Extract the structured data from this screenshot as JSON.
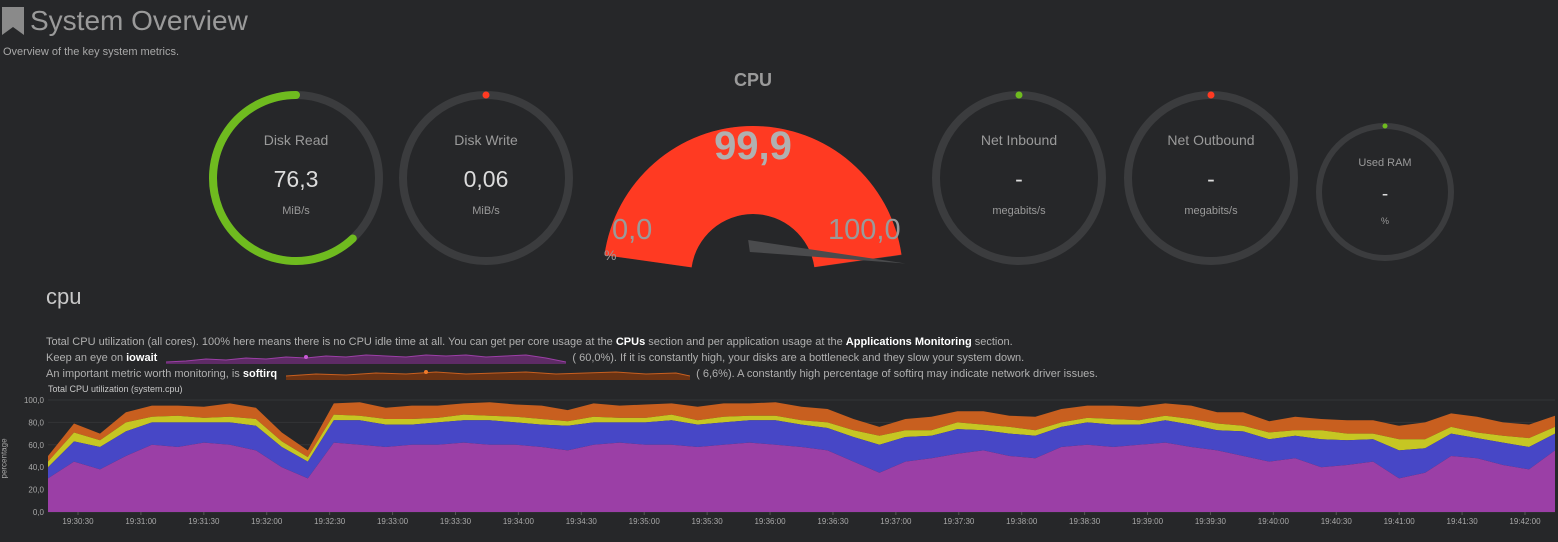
{
  "page": {
    "title": "System Overview",
    "subtitle": "Overview of the key system metrics."
  },
  "gauges": [
    {
      "label": "Disk Read",
      "value": "76,3",
      "unit": "MiB/s",
      "fraction": 0.62,
      "color": "#6fbb1f"
    },
    {
      "label": "Disk Write",
      "value": "0,06",
      "unit": "MiB/s",
      "fraction": 0.0,
      "color": "#ff3a22"
    },
    {
      "label": "Net Inbound",
      "value": "-",
      "unit": "megabits/s",
      "fraction": 0.0,
      "color": "#6fbb1f"
    },
    {
      "label": "Net Outbound",
      "value": "-",
      "unit": "megabits/s",
      "fraction": 0.0,
      "color": "#ff3a22"
    },
    {
      "label": "Used RAM",
      "value": "-",
      "unit": "%",
      "fraction": 0.0,
      "color": "#6fbb1f"
    }
  ],
  "cpu_gauge": {
    "label": "CPU",
    "value": "99,9",
    "min": "0,0",
    "max": "100,0",
    "unit": "%",
    "fraction": 0.999,
    "color": "#ff3a22"
  },
  "section": {
    "title": "cpu",
    "desc1_pre": "Total CPU utilization (all cores). 100% here means there is no CPU idle time at all. You can get per core usage at the ",
    "desc1_link1": "CPUs",
    "desc1_mid": " section and per application usage at the ",
    "desc1_link2": "Applications Monitoring",
    "desc1_post": " section.",
    "iowait_pre": "Keep an eye on ",
    "iowait_name": "iowait",
    "iowait_value": "(        60,0%). If it is constantly high, your disks are a bottleneck and they slow your system down.",
    "softirq_pre": "An important metric worth monitoring, is ",
    "softirq_name": "softirq",
    "softirq_value": "(        6,6%). A constantly high percentage of softirq may indicate network driver issues."
  },
  "chart_data": {
    "type": "area",
    "title": "Total CPU utilization (system.cpu)",
    "ylabel": "percentage",
    "ylim": [
      0,
      100
    ],
    "y_ticks": [
      "100,0",
      "80,0",
      "60,0",
      "40,0",
      "20,0",
      "0,0"
    ],
    "x_ticks": [
      "19:30:30",
      "19:31:00",
      "19:31:30",
      "19:32:00",
      "19:32:30",
      "19:33:00",
      "19:33:30",
      "19:34:00",
      "19:34:30",
      "19:35:00",
      "19:35:30",
      "19:36:00",
      "19:36:30",
      "19:37:00",
      "19:37:30",
      "19:38:00",
      "19:38:30",
      "19:39:00",
      "19:39:30",
      "19:40:00",
      "19:40:30",
      "19:41:00",
      "19:41:30",
      "19:42:00"
    ],
    "stacked": true,
    "series": [
      {
        "color": "#9b3fa6",
        "values": [
          30,
          45,
          38,
          50,
          60,
          58,
          62,
          60,
          55,
          40,
          30,
          62,
          60,
          58,
          60,
          60,
          62,
          60,
          60,
          58,
          55,
          60,
          62,
          60,
          60,
          58,
          60,
          62,
          60,
          58,
          55,
          45,
          35,
          45,
          48,
          52,
          55,
          50,
          48,
          58,
          60,
          58,
          60,
          62,
          58,
          55,
          50,
          45,
          48,
          40,
          42,
          45,
          30,
          35,
          50,
          48,
          42,
          38,
          55
        ]
      },
      {
        "color": "#4747c6",
        "values": [
          10,
          18,
          20,
          22,
          20,
          22,
          18,
          20,
          22,
          18,
          15,
          20,
          22,
          20,
          18,
          20,
          20,
          22,
          20,
          20,
          22,
          20,
          18,
          20,
          22,
          20,
          20,
          20,
          22,
          20,
          20,
          22,
          25,
          22,
          20,
          22,
          18,
          20,
          20,
          18,
          20,
          20,
          18,
          20,
          20,
          18,
          22,
          20,
          20,
          25,
          22,
          20,
          25,
          22,
          20,
          18,
          20,
          20,
          15
        ]
      },
      {
        "color": "#c6c623",
        "values": [
          5,
          8,
          6,
          8,
          5,
          6,
          4,
          5,
          6,
          5,
          4,
          5,
          4,
          5,
          5,
          4,
          5,
          4,
          5,
          5,
          4,
          5,
          4,
          4,
          5,
          4,
          5,
          4,
          4,
          4,
          5,
          6,
          8,
          6,
          5,
          6,
          5,
          6,
          5,
          4,
          4,
          5,
          4,
          4,
          5,
          6,
          5,
          6,
          5,
          8,
          6,
          5,
          10,
          8,
          6,
          5,
          6,
          8,
          6
        ]
      },
      {
        "color": "#c85f1f",
        "values": [
          5,
          8,
          6,
          9,
          10,
          9,
          10,
          12,
          10,
          8,
          6,
          10,
          12,
          10,
          12,
          11,
          10,
          12,
          11,
          12,
          10,
          12,
          11,
          12,
          10,
          12,
          12,
          11,
          12,
          12,
          12,
          10,
          8,
          10,
          12,
          10,
          12,
          10,
          12,
          12,
          11,
          12,
          12,
          11,
          12,
          10,
          12,
          10,
          12,
          10,
          12,
          12,
          12,
          15,
          12,
          14,
          12,
          12,
          10
        ]
      }
    ]
  }
}
